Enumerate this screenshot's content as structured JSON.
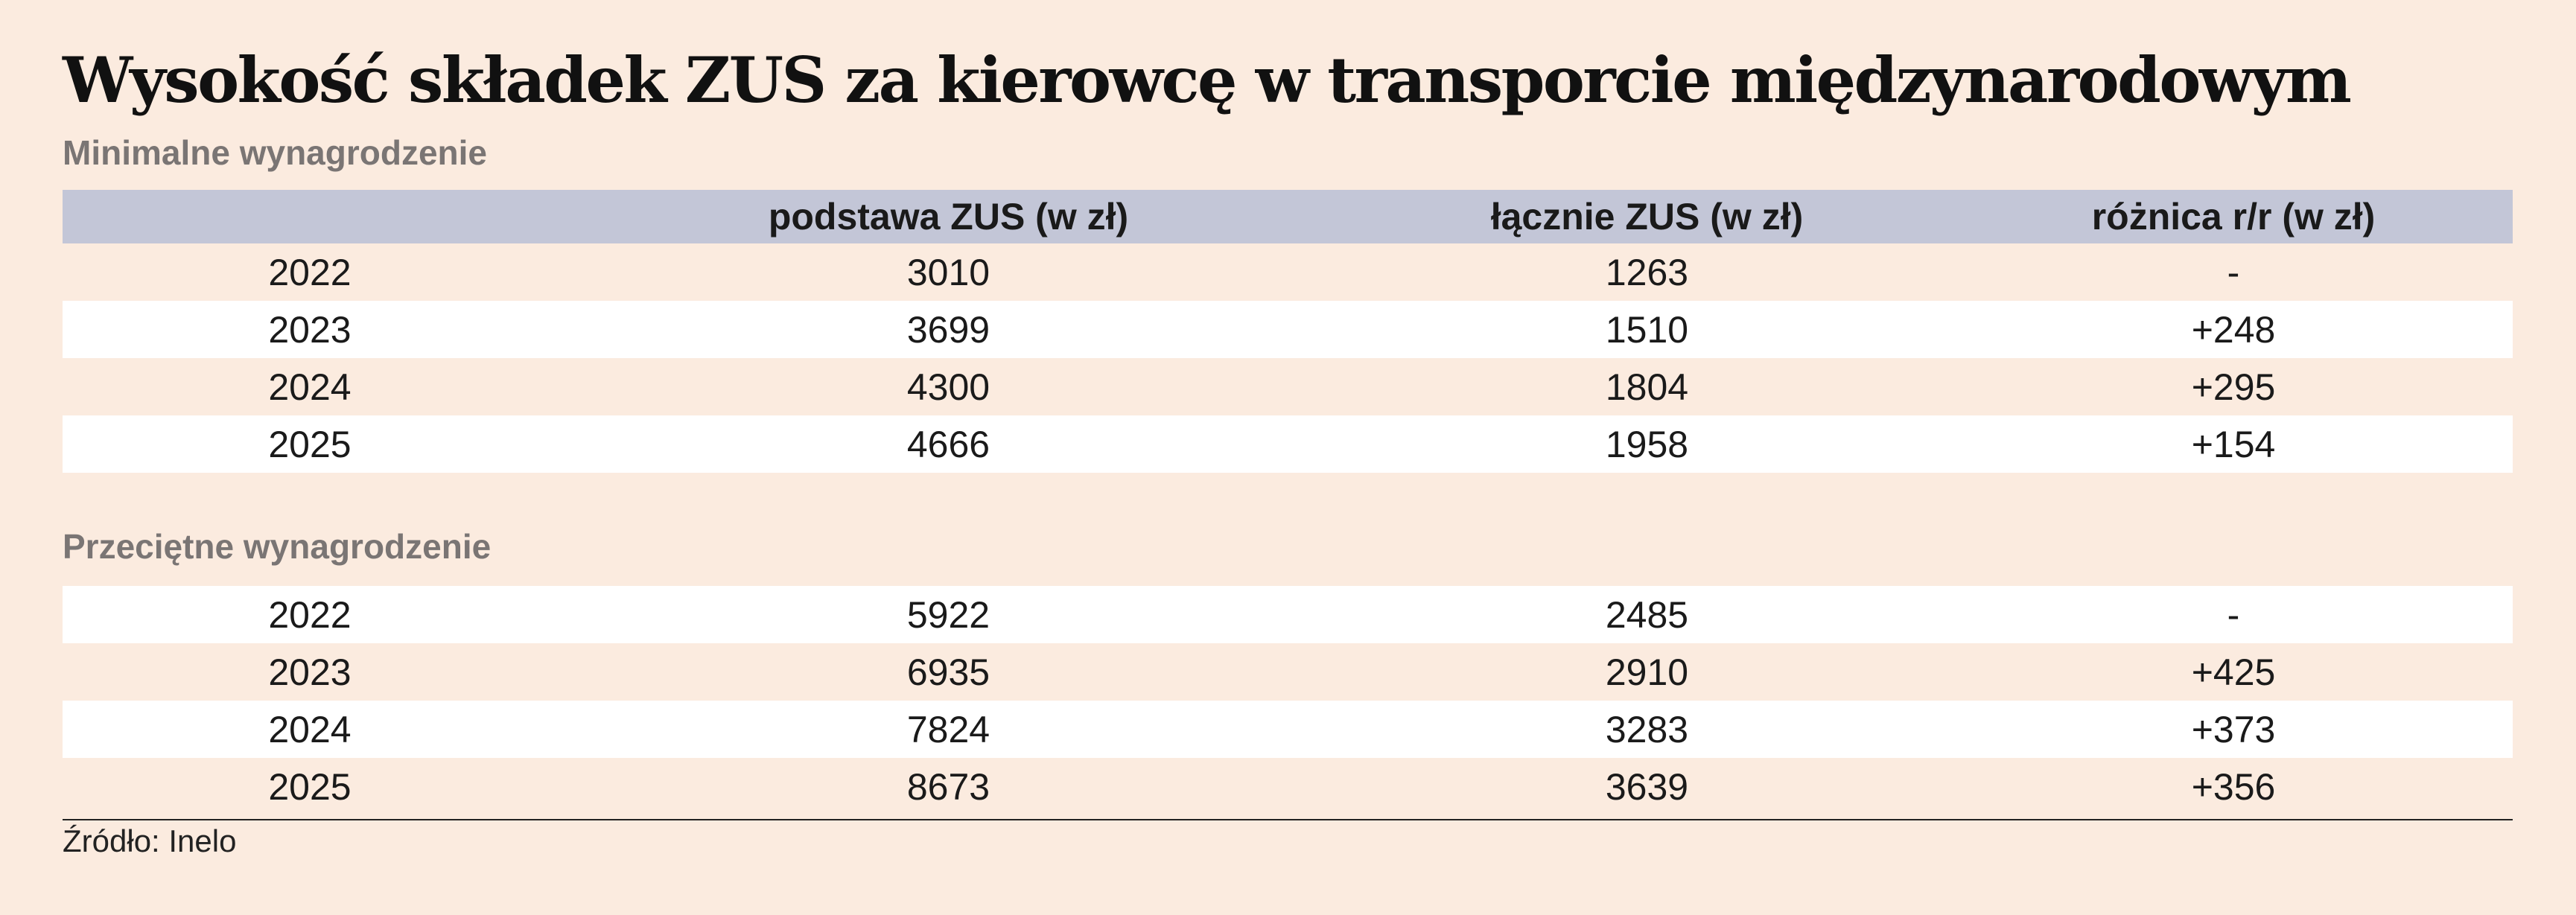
{
  "title": "Wysokość składek ZUS za kierowcę w transporcie międzynarodowym",
  "section1": "Minimalne wynagrodzenie",
  "section2": "Przeciętne wynagrodzenie",
  "headers": [
    "",
    "podstawa ZUS (w zł)",
    "łącznie ZUS (w zł)",
    "różnica r/r (w zł)"
  ],
  "minimal": [
    [
      "2022",
      "3010",
      "1263",
      "-"
    ],
    [
      "2023",
      "3699",
      "1510",
      "+248"
    ],
    [
      "2024",
      "4300",
      "1804",
      "+295"
    ],
    [
      "2025",
      "4666",
      "1958",
      "+154"
    ]
  ],
  "average": [
    [
      "2022",
      "5922",
      "2485",
      "-"
    ],
    [
      "2023",
      "6935",
      "2910",
      "+425"
    ],
    [
      "2024",
      "7824",
      "3283",
      "+373"
    ],
    [
      "2025",
      "8673",
      "3639",
      "+356"
    ]
  ],
  "source": "Źródło: Inelo",
  "colors": {
    "background": "#fbebdf",
    "header": "#c3c6d7",
    "row_alt": "#ffffff",
    "subtitle": "#7a7574"
  }
}
